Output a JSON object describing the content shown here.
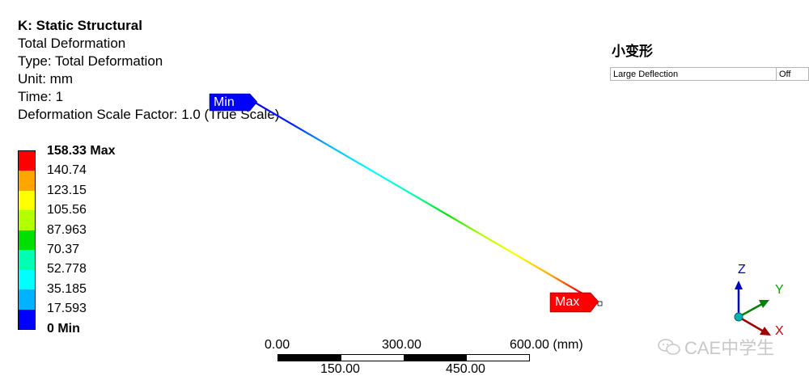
{
  "header": {
    "title": "K: Static Structural",
    "lines": [
      "Total Deformation",
      "Type: Total Deformation",
      "Unit: mm",
      "Time: 1",
      "Deformation Scale Factor: 1.0 (True Scale)"
    ]
  },
  "legend": {
    "colors": [
      "#ff0000",
      "#ffa500",
      "#ffff00",
      "#b3ff00",
      "#00e000",
      "#00ffb3",
      "#00ffff",
      "#00b3ff",
      "#0000ff"
    ],
    "labels": [
      "158.33 Max",
      "140.74",
      "123.15",
      "105.56",
      "87.963",
      "70.37",
      "52.778",
      "35.185",
      "17.593",
      "0 Min"
    ]
  },
  "details_panel": {
    "title": "小变形",
    "rows": [
      {
        "property": "Large Deflection",
        "value": "Off"
      }
    ]
  },
  "probes": {
    "min_label": "Min",
    "max_label": "Max",
    "min_color": "#0000ff",
    "max_color": "#ff0000"
  },
  "scale_bar": {
    "top_labels": [
      "0.00",
      "300.00",
      "600.00 (mm)"
    ],
    "bottom_labels": [
      "150.00",
      "450.00"
    ]
  },
  "triad": {
    "x_label": "X",
    "y_label": "Y",
    "z_label": "Z",
    "x_color": "#c00000",
    "y_color": "#00a000",
    "z_color": "#0000c0"
  },
  "watermark": {
    "text": "CAE中学生"
  }
}
